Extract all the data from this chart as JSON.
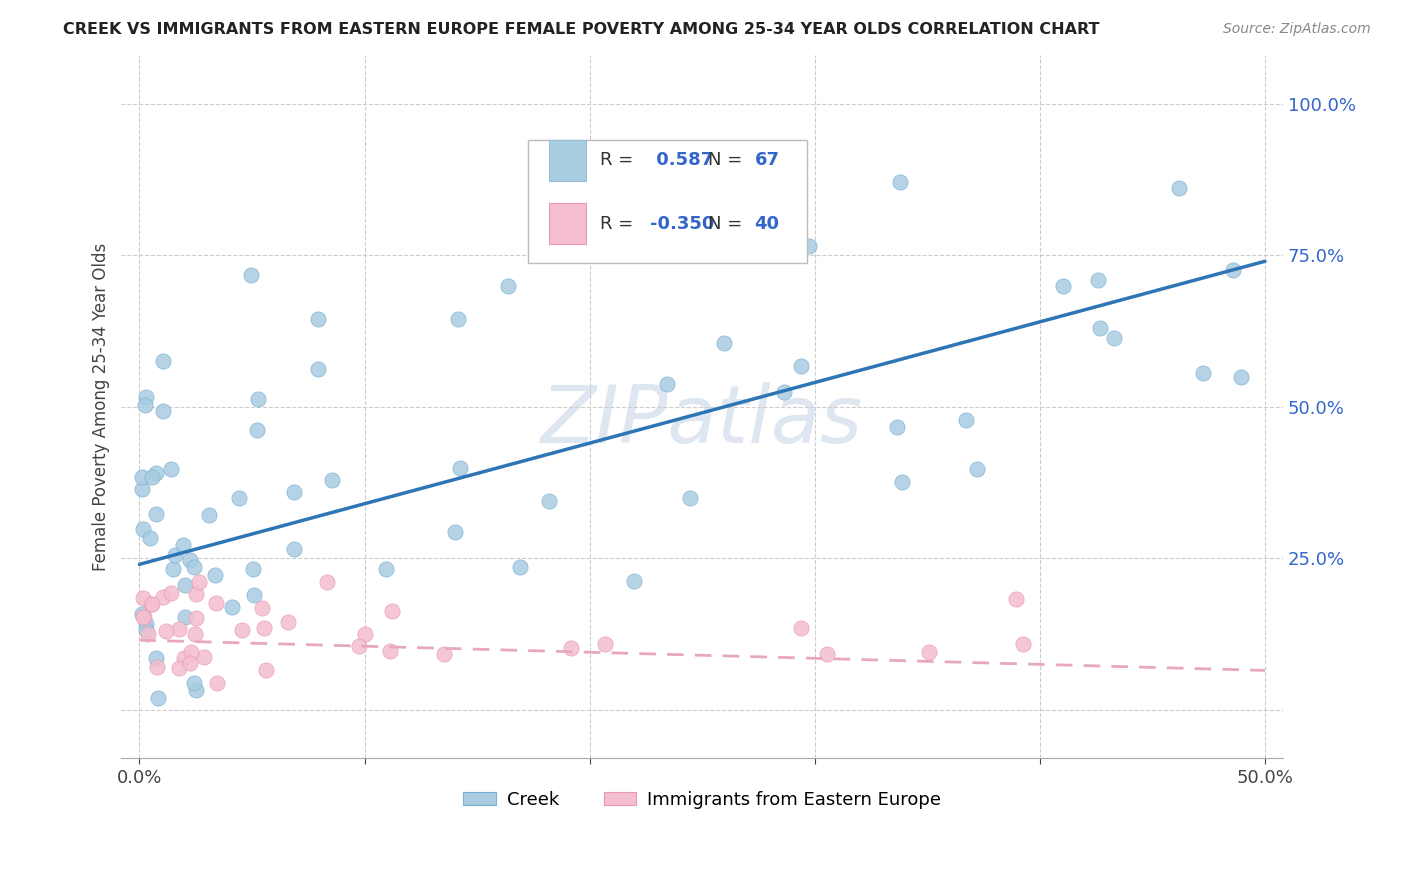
{
  "title": "CREEK VS IMMIGRANTS FROM EASTERN EUROPE FEMALE POVERTY AMONG 25-34 YEAR OLDS CORRELATION CHART",
  "source_text": "Source: ZipAtlas.com",
  "ylabel": "Female Poverty Among 25-34 Year Olds",
  "creek_color": "#a8cce0",
  "creek_edge_color": "#7aafd4",
  "ee_color": "#f4bece",
  "ee_edge_color": "#e898b0",
  "creek_line_color": "#2e75b6",
  "ee_line_color": "#e8a8bc",
  "creek_R": 0.587,
  "creek_N": 67,
  "ee_R": -0.35,
  "ee_N": 40,
  "watermark": "ZIPatlas",
  "legend_R_color": "#333333",
  "legend_val_color": "#3366cc",
  "xlim_low": -0.008,
  "xlim_high": 0.508,
  "ylim_low": -0.08,
  "ylim_high": 1.08,
  "creek_line_x0": 0.0,
  "creek_line_y0": 0.24,
  "creek_line_x1": 0.5,
  "creek_line_y1": 0.74,
  "ee_line_x0": 0.0,
  "ee_line_y0": 0.115,
  "ee_line_x1": 0.5,
  "ee_line_y1": 0.065
}
